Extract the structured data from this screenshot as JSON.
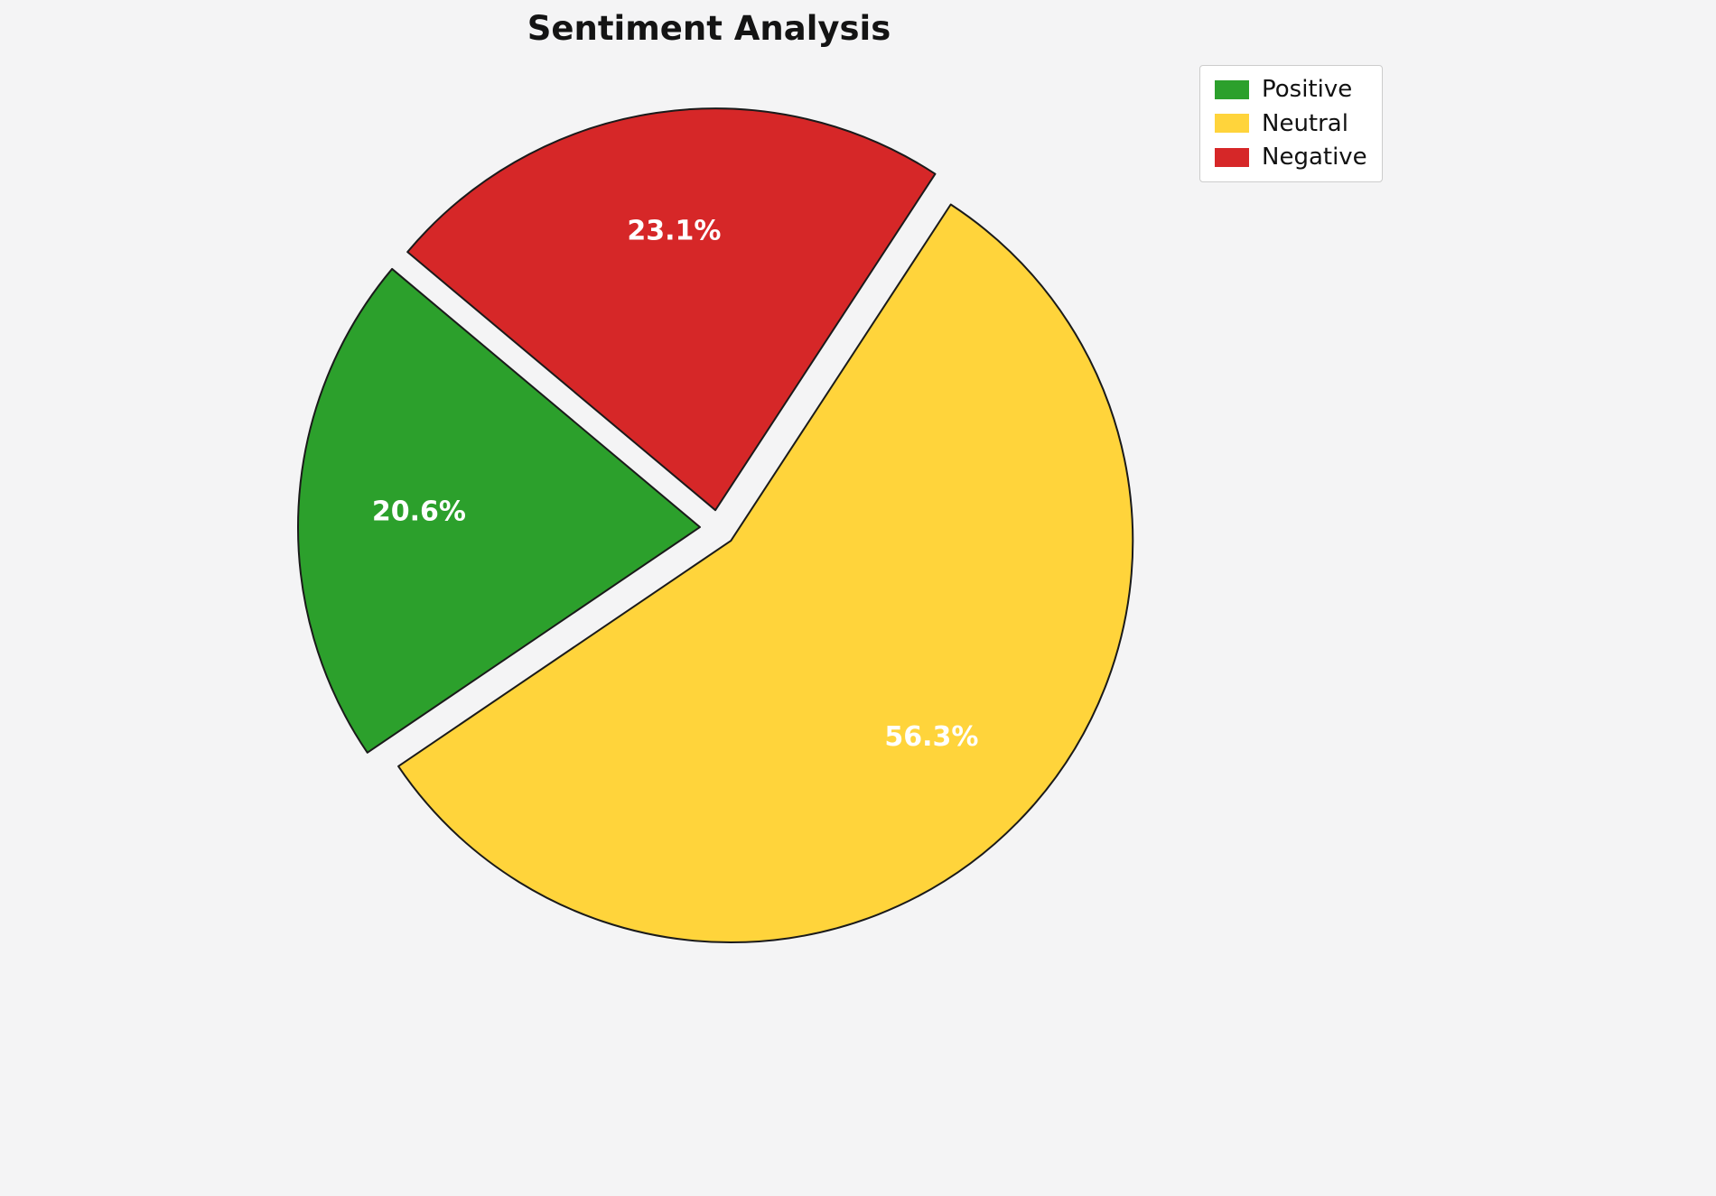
{
  "chart_data": {
    "type": "pie",
    "title": "Sentiment Analysis",
    "categories": [
      "Positive",
      "Neutral",
      "Negative"
    ],
    "values": [
      20.6,
      56.3,
      23.1
    ],
    "value_labels": [
      "20.6%",
      "56.3%",
      "23.1%"
    ],
    "colors": [
      "#2ca02c",
      "#FFD43B",
      "#d62728"
    ],
    "label_color": "#ffffff",
    "edge_color": "#1a1a1a",
    "background_color": "#f4f4f5",
    "start_angle": 140,
    "direction": "counterclockwise",
    "explode": [
      0.045,
      0.045,
      0.045
    ],
    "pct_label_distance": 0.7,
    "legend_position": "upper right",
    "legend_entries": [
      "Positive",
      "Neutral",
      "Negative"
    ]
  }
}
